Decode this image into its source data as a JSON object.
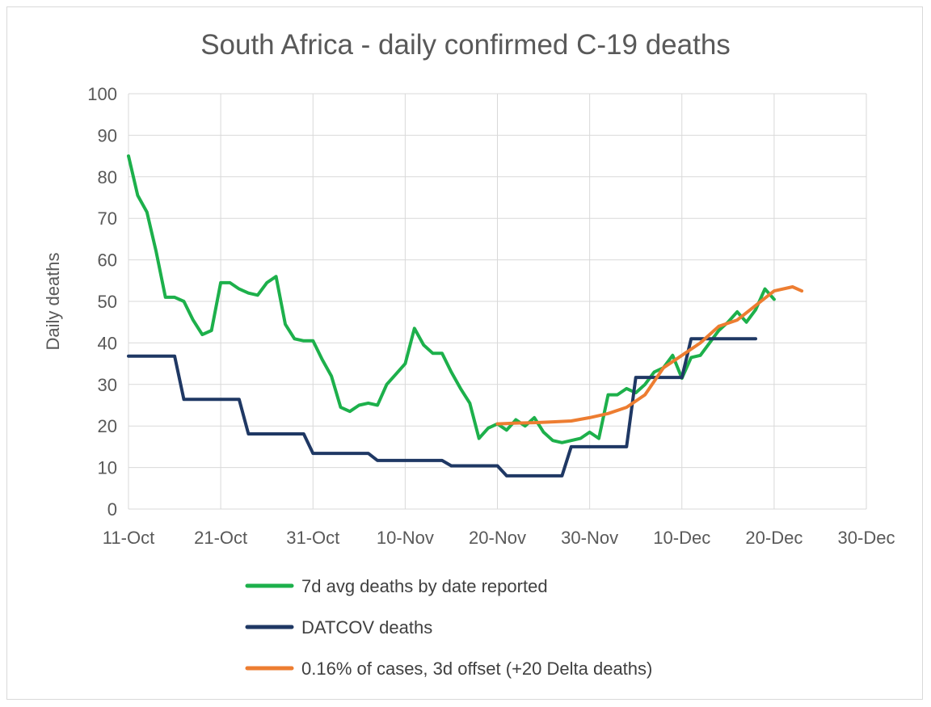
{
  "chart_data": {
    "type": "line",
    "title": "South Africa - daily confirmed C-19 deaths",
    "xlabel": "",
    "ylabel": "Daily deaths",
    "ylim": [
      0,
      100
    ],
    "yticks": [
      0,
      10,
      20,
      30,
      40,
      50,
      60,
      70,
      80,
      90,
      100
    ],
    "xlim_days": [
      0,
      80
    ],
    "xticks": [
      {
        "day": 0,
        "label": "11-Oct"
      },
      {
        "day": 10,
        "label": "21-Oct"
      },
      {
        "day": 20,
        "label": "31-Oct"
      },
      {
        "day": 30,
        "label": "10-Nov"
      },
      {
        "day": 40,
        "label": "20-Nov"
      },
      {
        "day": 50,
        "label": "30-Nov"
      },
      {
        "day": 60,
        "label": "10-Dec"
      },
      {
        "day": 70,
        "label": "20-Dec"
      },
      {
        "day": 80,
        "label": "30-Dec"
      }
    ],
    "grid": true,
    "legend_position": "bottom",
    "series": [
      {
        "name": "7d avg deaths by date reported",
        "color": "#1db04b",
        "x": [
          0,
          1,
          2,
          3,
          4,
          5,
          6,
          7,
          8,
          9,
          10,
          11,
          12,
          13,
          14,
          15,
          16,
          17,
          18,
          19,
          20,
          21,
          22,
          23,
          24,
          25,
          26,
          27,
          28,
          29,
          30,
          31,
          32,
          33,
          34,
          35,
          36,
          37,
          38,
          39,
          40,
          41,
          42,
          43,
          44,
          45,
          46,
          47,
          48,
          49,
          50,
          51,
          52,
          53,
          54,
          55,
          56,
          57,
          58,
          59,
          60,
          61,
          62,
          63,
          64,
          65,
          66,
          67,
          68,
          69,
          70
        ],
        "values": [
          85,
          75.5,
          71.5,
          62,
          51,
          51,
          50,
          45.5,
          42,
          43,
          54.5,
          54.5,
          53,
          52,
          51.5,
          54.5,
          56,
          44.5,
          41,
          40.5,
          40.5,
          36,
          32,
          24.5,
          23.5,
          25,
          25.5,
          25,
          30,
          32.5,
          35,
          43.5,
          39.5,
          37.5,
          37.5,
          33,
          29,
          25.5,
          17,
          19.5,
          20.5,
          19,
          21.5,
          20,
          22,
          18.5,
          16.5,
          16,
          16.5,
          17,
          18.5,
          17,
          27.5,
          27.5,
          29,
          28,
          30,
          33,
          34,
          37,
          31.5,
          36.5,
          37,
          40,
          43,
          45,
          47.5,
          45,
          48,
          53,
          50.5
        ]
      },
      {
        "name": "DATCOV deaths",
        "color": "#1f3864",
        "x": [
          0,
          5,
          6,
          12,
          13,
          19,
          20,
          26,
          27,
          34,
          35,
          40,
          41,
          47,
          48,
          54,
          55,
          60,
          61,
          68
        ],
        "values": [
          36.8,
          36.8,
          26.4,
          26.4,
          18.1,
          18.1,
          13.4,
          13.4,
          11.7,
          11.7,
          10.4,
          10.4,
          8.0,
          8.0,
          15.0,
          15.0,
          31.7,
          31.7,
          41.0,
          41.0
        ]
      },
      {
        "name": "0.16% of cases, 3d offset (+20 Delta deaths)",
        "color": "#ed7d31",
        "x": [
          40,
          42,
          44,
          46,
          48,
          50,
          52,
          54,
          56,
          58,
          60,
          62,
          64,
          66,
          68,
          70,
          72,
          73
        ],
        "values": [
          20.5,
          20.7,
          20.8,
          21.0,
          21.2,
          22.0,
          23.0,
          24.5,
          27.5,
          34.0,
          37.0,
          40.0,
          44.0,
          45.5,
          49.0,
          52.5,
          53.5,
          52.5
        ]
      }
    ]
  }
}
